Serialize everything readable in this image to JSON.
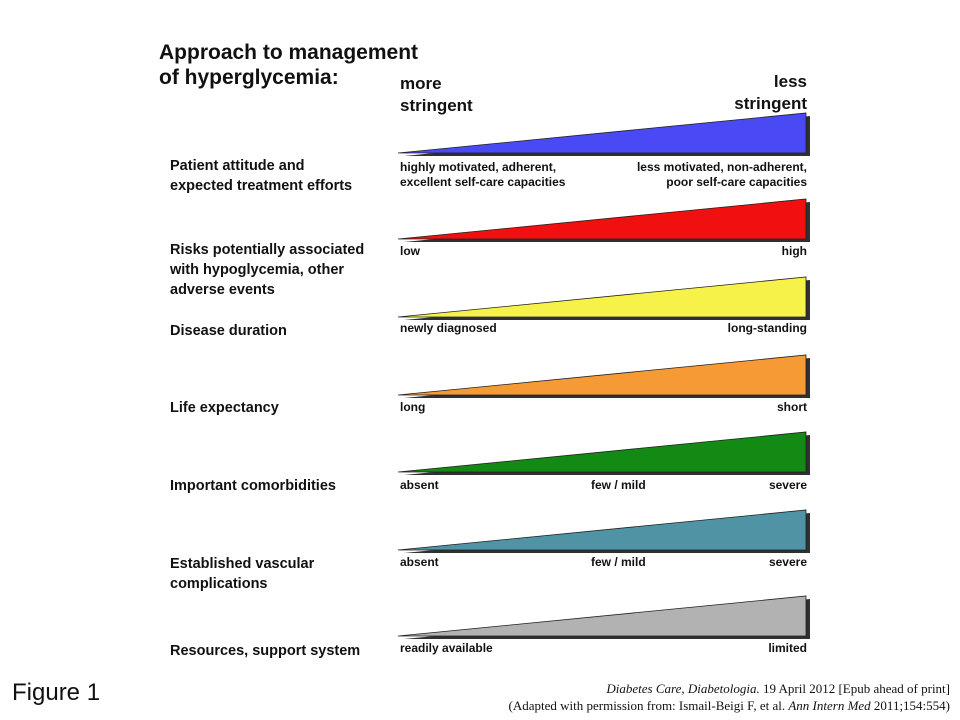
{
  "title": "Approach to management\nof hyperglycemia:",
  "header": {
    "left": "more\nstringent",
    "right": "less\nstringent"
  },
  "rows": [
    {
      "label": "Patient attitude and\nexpected treatment efforts",
      "color": "#4a4af4",
      "left": "highly motivated, adherent,\nexcellent self-care capacities",
      "mid": "",
      "right": "less motivated, non-adherent,\npoor self-care capacities"
    },
    {
      "label": "Risks potentially associated\nwith hypoglycemia, other\nadverse events",
      "color": "#f01010",
      "left": "low",
      "mid": "",
      "right": "high"
    },
    {
      "label": "Disease duration",
      "color": "#f6f24a",
      "left": "newly diagnosed",
      "mid": "",
      "right": "long-standing"
    },
    {
      "label": "Life expectancy",
      "color": "#f59a35",
      "left": "long",
      "mid": "",
      "right": "short"
    },
    {
      "label": "Important comorbidities",
      "color": "#138a13",
      "left": "absent",
      "mid": "few / mild",
      "right": "severe"
    },
    {
      "label": "Established vascular\ncomplications",
      "color": "#4f93a5",
      "left": "absent",
      "mid": "few / mild",
      "right": "severe"
    },
    {
      "label": "Resources, support system",
      "color": "#b2b2b2",
      "left": "readily available",
      "mid": "",
      "right": "limited"
    }
  ],
  "figure_label": "Figure 1",
  "citation": {
    "line1_journals": "Diabetes Care, Diabetologia.",
    "line1_rest": " 19 April 2012 [Epub ahead of print]",
    "line2_pre": "(Adapted with permission from: Ismail-Beigi F, et al. ",
    "line2_journal": "Ann Intern Med",
    "line2_post": " 2011;154:554)"
  }
}
